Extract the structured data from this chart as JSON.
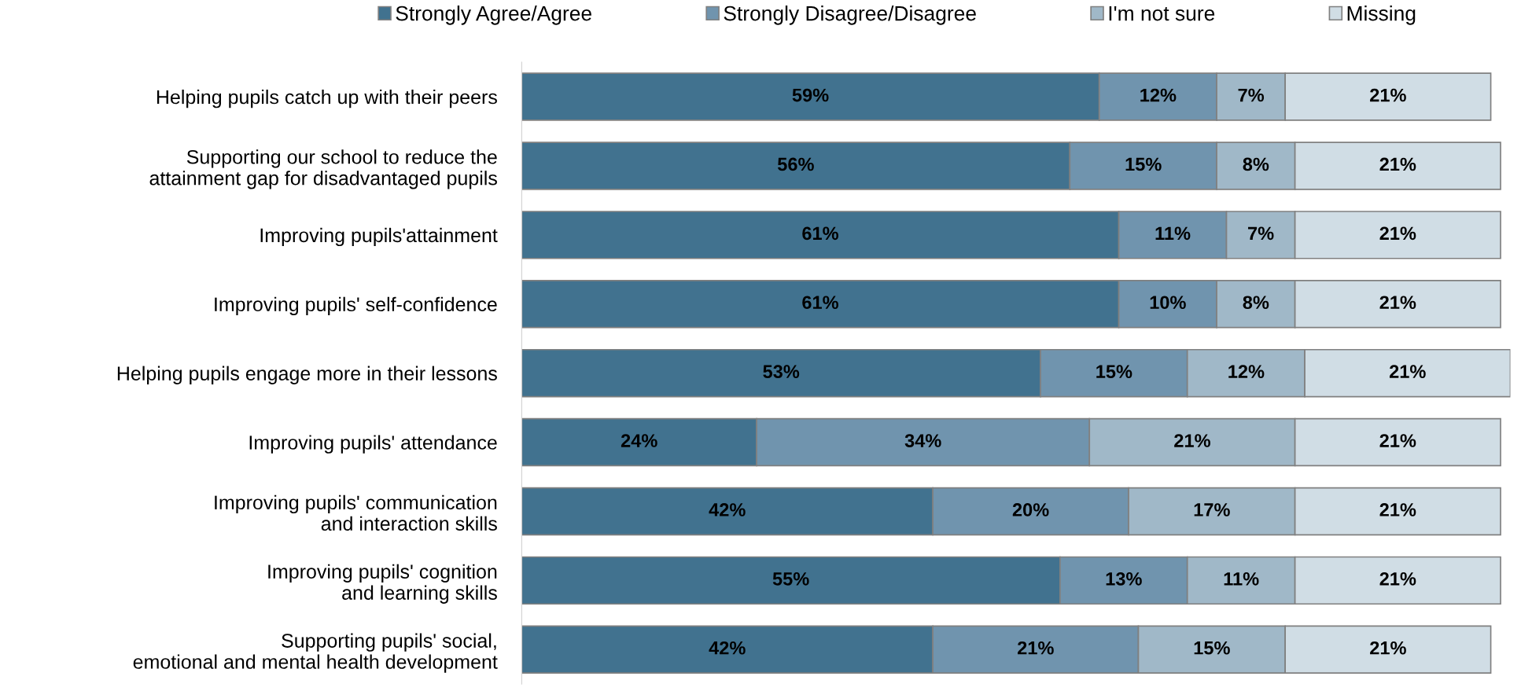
{
  "chart_data": {
    "type": "bar",
    "orientation": "horizontal",
    "stacked": true,
    "legend": "top",
    "grid": false,
    "tick_labels": "y",
    "categories": [
      "Helping pupils catch up with their peers",
      "Supporting our school to reduce the\nattainment gap for disadvantaged pupils",
      "Improving pupils'attainment",
      "Improving pupils' self-confidence",
      "Helping pupils engage more in their lessons",
      "Improving pupils' attendance",
      "Improving pupils' communication\nand interaction skills",
      "Improving pupils' cognition\nand learning skills",
      "Supporting pupils' social,\nemotional and mental health development"
    ],
    "series": [
      {
        "name": "Strongly Agree/Agree",
        "color": "#41728f",
        "values": [
          59,
          56,
          61,
          61,
          53,
          24,
          42,
          55,
          42
        ],
        "value_labels": [
          "59%",
          "56%",
          "61%",
          "61%",
          "53%",
          "24%",
          "42%",
          "55%",
          "42%"
        ]
      },
      {
        "name": "Strongly Disagree/Disagree",
        "color": "#7094ae",
        "values": [
          12,
          15,
          11,
          10,
          15,
          34,
          20,
          13,
          21
        ],
        "value_labels": [
          "12%",
          "15%",
          "11%",
          "10%",
          "15%",
          "34%",
          "20%",
          "13%",
          "21%"
        ]
      },
      {
        "name": "I'm not sure",
        "color": "#a0b8c8",
        "values": [
          7,
          8,
          7,
          8,
          12,
          21,
          17,
          11,
          15
        ],
        "value_labels": [
          "7%",
          "8%",
          "7%",
          "8%",
          "12%",
          "21%",
          "17%",
          "11%",
          "15%"
        ]
      },
      {
        "name": "Missing",
        "color": "#d0dde5",
        "values": [
          21,
          21,
          21,
          21,
          21,
          21,
          21,
          21,
          21
        ],
        "value_labels": [
          "21%",
          "21%",
          "21%",
          "21%",
          "21%",
          "21%",
          "21%",
          "21%",
          "21%"
        ]
      }
    ]
  }
}
